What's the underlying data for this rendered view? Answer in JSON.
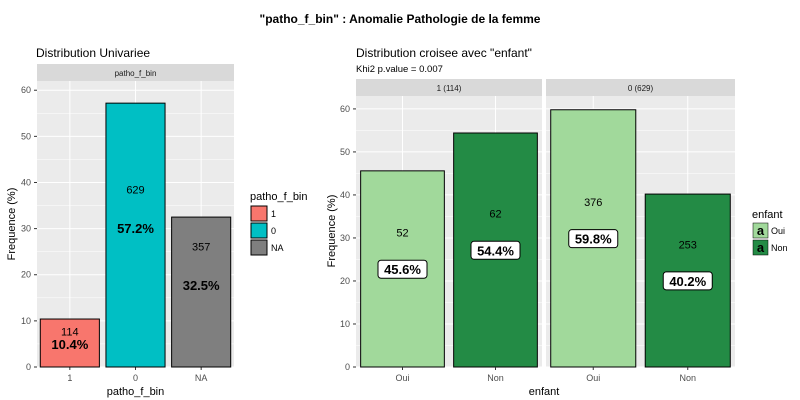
{
  "page_title": "\"patho_f_bin\" : Anomalie Pathologie de la femme",
  "colors": {
    "panel_bg": "#ebebeb",
    "grid_major": "#ffffff",
    "strip_bg": "#d9d9d9",
    "axis_text": "#4d4d4d",
    "text": "#000000",
    "cat_1": "#f8766d",
    "cat_0": "#00bfc4",
    "cat_NA": "#7f7f7f",
    "enfant_oui": "#a1d99b",
    "enfant_non": "#238b45"
  },
  "chart_data": [
    {
      "type": "bar",
      "title": "Distribution Univariee",
      "strip": "patho_f_bin",
      "xlabel": "patho_f_bin",
      "ylabel": "Frequence (%)",
      "ylim": [
        0,
        62
      ],
      "yticks": [
        0,
        10,
        20,
        30,
        40,
        50,
        60
      ],
      "categories": [
        "1",
        "0",
        "NA"
      ],
      "values": [
        10.4,
        57.2,
        32.5
      ],
      "counts": [
        "114",
        "629",
        "357"
      ],
      "percent_labels": [
        "10.4%",
        "57.2%",
        "32.5%"
      ],
      "legend": {
        "title": "patho_f_bin",
        "entries": [
          "1",
          "0",
          "NA"
        ],
        "position": "right"
      }
    },
    {
      "type": "bar",
      "title": "Distribution croisee avec \"enfant\"",
      "subtitle": "Khi2 p.value = 0.007",
      "xlabel": "enfant",
      "ylabel": "Frequence (%)",
      "ylim": [
        0,
        63
      ],
      "yticks": [
        0,
        10,
        20,
        30,
        40,
        50,
        60
      ],
      "facets": [
        {
          "strip": "1 (114)",
          "categories": [
            "Oui",
            "Non"
          ],
          "values": [
            45.6,
            54.4
          ],
          "counts": [
            "52",
            "62"
          ],
          "percent_labels": [
            "45.6%",
            "54.4%"
          ]
        },
        {
          "strip": "0 (629)",
          "categories": [
            "Oui",
            "Non"
          ],
          "values": [
            59.8,
            40.2
          ],
          "counts": [
            "376",
            "253"
          ],
          "percent_labels": [
            "59.8%",
            "40.2%"
          ]
        }
      ],
      "legend": {
        "title": "enfant",
        "key_glyph": "a",
        "entries": [
          "Oui",
          "Non"
        ],
        "position": "right"
      }
    }
  ]
}
